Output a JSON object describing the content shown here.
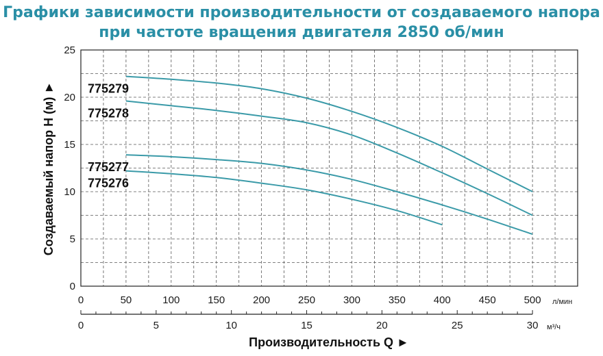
{
  "title": {
    "line1": "Графики зависимости производительности от создаваемого напора",
    "line2": "при частоте вращения двигателя 2850 об/мин"
  },
  "colors": {
    "title": "#2a8fa6",
    "curve": "#3a9aa8",
    "grid": "#555555",
    "axis": "#222222"
  },
  "chart_data": {
    "type": "line",
    "xlabel": "Производительность Q ►",
    "ylabel": "Создаваемый напор H (м) ►",
    "x_unit_primary": "л/мин",
    "x_unit_secondary": "м³/ч",
    "xlim": [
      0,
      550
    ],
    "ylim": [
      0,
      25
    ],
    "x_ticks": [
      "0",
      "50",
      "100",
      "150",
      "200",
      "250",
      "300",
      "350",
      "400",
      "450",
      "500"
    ],
    "x_ticks_secondary": [
      "0",
      "5",
      "10",
      "15",
      "20",
      "25",
      "30"
    ],
    "y_ticks": [
      "0",
      "5",
      "10",
      "15",
      "20",
      "25"
    ],
    "grid": true,
    "series": [
      {
        "name": "775279",
        "x": [
          50,
          100,
          150,
          200,
          250,
          300,
          350,
          400,
          450,
          500
        ],
        "y": [
          22.2,
          21.9,
          21.5,
          20.9,
          19.9,
          18.5,
          16.8,
          14.8,
          12.4,
          10.0
        ]
      },
      {
        "name": "775278",
        "x": [
          50,
          100,
          150,
          200,
          250,
          300,
          350,
          400,
          450,
          500
        ],
        "y": [
          19.6,
          19.1,
          18.6,
          18.0,
          17.3,
          16.0,
          14.1,
          12.0,
          9.8,
          7.5
        ]
      },
      {
        "name": "775277",
        "x": [
          50,
          100,
          150,
          200,
          250,
          300,
          350,
          400,
          450,
          500
        ],
        "y": [
          13.9,
          13.7,
          13.4,
          13.0,
          12.3,
          11.3,
          10.0,
          8.6,
          7.1,
          5.5
        ]
      },
      {
        "name": "775276",
        "x": [
          50,
          100,
          150,
          200,
          250,
          300,
          350,
          400
        ],
        "y": [
          12.2,
          11.9,
          11.5,
          10.9,
          10.2,
          9.2,
          8.0,
          6.5
        ]
      }
    ]
  }
}
